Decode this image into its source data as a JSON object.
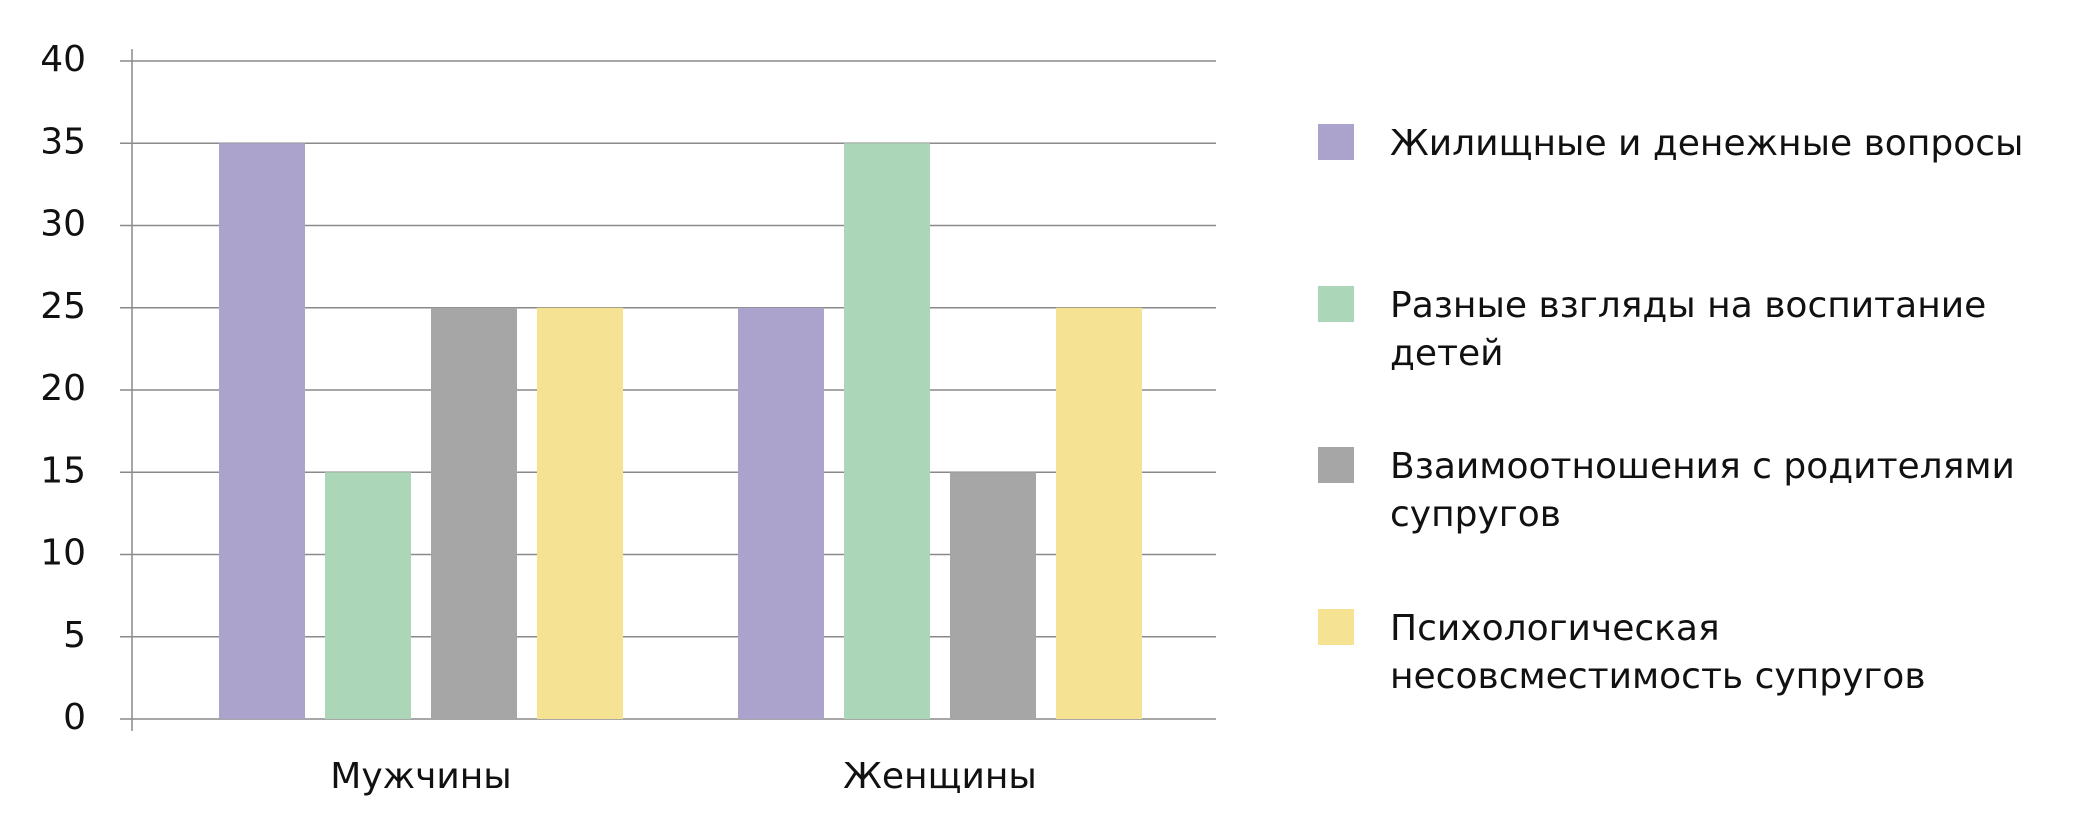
{
  "chart_data": {
    "type": "bar",
    "categories": [
      "Мужчины",
      "Женщины"
    ],
    "series": [
      {
        "name": "Жилищные и денежные вопросы",
        "color": "#aca3cd",
        "values": [
          35,
          25
        ]
      },
      {
        "name": "Разные взгляды на воспитание детей",
        "color": "#acd6b8",
        "values": [
          15,
          35
        ]
      },
      {
        "name": "Взаимоотношения с родителями супругов",
        "color": "#a6a6a6",
        "values": [
          25,
          15
        ]
      },
      {
        "name": "Психологическая несовсместимость супругов",
        "color": "#f5e393",
        "values": [
          25,
          25
        ]
      }
    ],
    "ylim": [
      0,
      40
    ],
    "yticks": [
      0,
      5,
      10,
      15,
      20,
      25,
      30,
      35,
      40
    ],
    "grid": true,
    "legend": "right"
  }
}
